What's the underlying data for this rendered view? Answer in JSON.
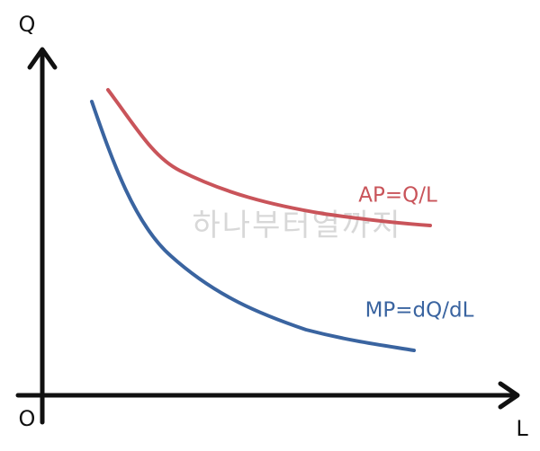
{
  "axes": {
    "y_label": "Q",
    "x_label": "L",
    "origin_label": "O"
  },
  "curves": [
    {
      "label": "AP=Q/L"
    },
    {
      "label": "MP=dQ/dL"
    }
  ],
  "watermark": "하나부터열까지"
}
